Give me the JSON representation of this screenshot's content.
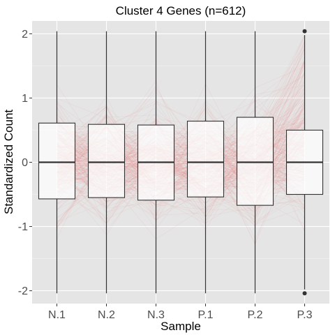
{
  "chart_data": {
    "type": "boxplot",
    "title": "Cluster 4 Genes (n=612)",
    "xlabel": "Sample",
    "ylabel": "Standardized Count",
    "ylim": [
      -2.2,
      2.2
    ],
    "yticks": [
      "-2",
      "-1",
      "0",
      "1",
      "2"
    ],
    "categories": [
      "N.1",
      "N.2",
      "N.3",
      "P.1",
      "P.2",
      "P.3"
    ],
    "grid": true,
    "panel_background": "#e5e5e5",
    "line_color": "#f08080",
    "boxes": [
      {
        "category": "N.1",
        "min": -2.04,
        "q1": -0.57,
        "median": 0.0,
        "q3": 0.61,
        "max": 2.04,
        "outliers": []
      },
      {
        "category": "N.2",
        "min": -2.04,
        "q1": -0.55,
        "median": 0.0,
        "q3": 0.59,
        "max": 2.04,
        "outliers": []
      },
      {
        "category": "N.3",
        "min": -2.04,
        "q1": -0.59,
        "median": 0.0,
        "q3": 0.58,
        "max": 2.04,
        "outliers": []
      },
      {
        "category": "P.1",
        "min": -2.04,
        "q1": -0.54,
        "median": 0.0,
        "q3": 0.64,
        "max": 2.04,
        "outliers": []
      },
      {
        "category": "P.2",
        "min": -2.04,
        "q1": -0.67,
        "median": 0.0,
        "q3": 0.7,
        "max": 2.04,
        "outliers": []
      },
      {
        "category": "P.3",
        "min": -1.98,
        "q1": -0.5,
        "median": 0.0,
        "q3": 0.5,
        "max": 1.98,
        "outliers": [
          2.04,
          -2.04
        ]
      }
    ]
  }
}
